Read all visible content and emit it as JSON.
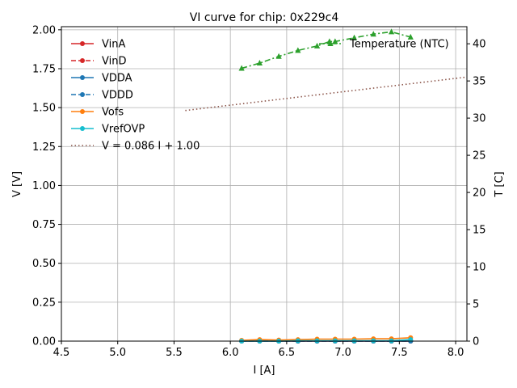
{
  "chart_data": {
    "type": "line",
    "title": "VI curve for chip: 0x229c4",
    "xlabel": "I [A]",
    "ylabel": "V [V]",
    "y2label": "T [C]",
    "xlim": [
      4.5,
      8.1
    ],
    "ylim": [
      0,
      2.02
    ],
    "y2lim": [
      0,
      42.3
    ],
    "grid": true,
    "xticks": [
      "4.5",
      "5.0",
      "5.5",
      "6.0",
      "6.5",
      "7.0",
      "7.5",
      "8.0"
    ],
    "yticks": [
      "0.00",
      "0.25",
      "0.50",
      "0.75",
      "1.00",
      "1.25",
      "1.50",
      "1.75",
      "2.00"
    ],
    "y2ticks": [
      "0",
      "5",
      "10",
      "15",
      "20",
      "25",
      "30",
      "35",
      "40"
    ],
    "legend_position": "upper-left",
    "series": [
      {
        "name": "VinA",
        "color": "#d62728",
        "style": "solid",
        "marker": "circle",
        "x": [
          6.1,
          6.26,
          6.43,
          6.6,
          6.77,
          6.93,
          7.1,
          7.27,
          7.43,
          7.6
        ],
        "y": [
          0.0,
          0.0,
          0.0,
          0.0,
          0.0,
          0.0,
          0.0,
          0.0,
          0.0,
          0.0
        ]
      },
      {
        "name": "VinD",
        "color": "#d62728",
        "style": "dashed",
        "marker": "circle",
        "x": [
          6.1,
          6.26,
          6.43,
          6.6,
          6.77,
          6.93,
          7.1,
          7.27,
          7.43,
          7.6
        ],
        "y": [
          0.0,
          0.0,
          0.0,
          0.0,
          0.0,
          0.0,
          0.0,
          0.0,
          0.0,
          0.0
        ]
      },
      {
        "name": "VDDA",
        "color": "#1f77b4",
        "style": "solid",
        "marker": "circle",
        "x": [
          6.1,
          6.26,
          6.43,
          6.6,
          6.77,
          6.93,
          7.1,
          7.27,
          7.43,
          7.6
        ],
        "y": [
          0.0,
          0.0,
          0.0,
          0.0,
          0.0,
          0.0,
          0.0,
          0.0,
          0.0,
          0.0
        ]
      },
      {
        "name": "VDDD",
        "color": "#1f77b4",
        "style": "dashed",
        "marker": "circle",
        "x": [
          6.1,
          6.26,
          6.43,
          6.6,
          6.77,
          6.93,
          7.1,
          7.27,
          7.43,
          7.6
        ],
        "y": [
          0.0,
          0.0,
          0.0,
          0.0,
          0.0,
          0.0,
          0.0,
          0.0,
          0.0,
          0.0
        ]
      },
      {
        "name": "Vofs",
        "color": "#ff7f0e",
        "style": "solid",
        "marker": "circle",
        "x": [
          6.1,
          6.26,
          6.43,
          6.6,
          6.77,
          6.93,
          7.1,
          7.27,
          7.43,
          7.6
        ],
        "y": [
          0.005,
          0.01,
          0.007,
          0.01,
          0.013,
          0.013,
          0.013,
          0.015,
          0.015,
          0.022
        ]
      },
      {
        "name": "VrefOVP",
        "color": "#17becf",
        "style": "solid",
        "marker": "circle",
        "x": [
          6.1,
          6.26,
          6.43,
          6.6,
          6.77,
          6.93,
          7.1,
          7.27,
          7.43,
          7.6
        ],
        "y": [
          0.0,
          0.0,
          0.0,
          0.002,
          0.002,
          0.002,
          0.002,
          0.002,
          0.002,
          0.01
        ]
      },
      {
        "name": "V = 0.086 I + 1.00",
        "color": "#8c564b",
        "style": "dotted",
        "marker": "none",
        "x": [
          5.6,
          8.1
        ],
        "y": [
          1.4816,
          1.6966
        ]
      }
    ],
    "series_y2": [
      {
        "name": "Temperature (NTC)",
        "color": "#2ca02c",
        "style": "dashdot",
        "marker": "triangle",
        "x": [
          6.1,
          6.26,
          6.43,
          6.6,
          6.77,
          6.88,
          6.93,
          7.1,
          7.27,
          7.43,
          7.6
        ],
        "y": [
          36.7,
          37.4,
          38.3,
          39.1,
          39.7,
          40.3,
          40.3,
          40.8,
          41.3,
          41.6,
          40.9
        ]
      }
    ]
  }
}
